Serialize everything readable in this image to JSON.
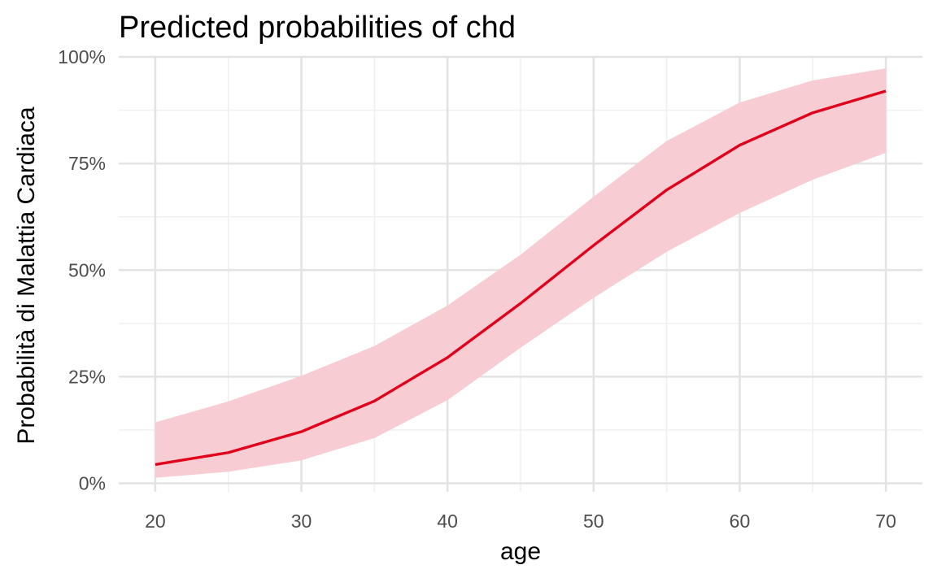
{
  "chart_data": {
    "type": "line",
    "title": "Predicted probabilities of chd",
    "xlabel": "age",
    "ylabel": "Probabilità di Malattia Cardiaca",
    "xlim": [
      17.5,
      72.5
    ],
    "ylim": [
      -0.02,
      1.0
    ],
    "x_ticks": [
      20,
      30,
      40,
      50,
      60,
      70
    ],
    "x_tick_labels": [
      "20",
      "30",
      "40",
      "50",
      "60",
      "70"
    ],
    "x_minor_ticks": [
      25,
      35,
      45,
      55,
      65
    ],
    "y_ticks": [
      0,
      0.25,
      0.5,
      0.75,
      1.0
    ],
    "y_tick_labels": [
      "0%",
      "25%",
      "50%",
      "75%",
      "100%"
    ],
    "y_minor_ticks": [
      0.125,
      0.375,
      0.625,
      0.875
    ],
    "grid": true,
    "legend": "none",
    "line_color": "#e0001b",
    "band_color": "#f7cdd3",
    "series": [
      {
        "x": [
          20,
          25,
          30,
          35,
          40,
          45,
          50,
          55,
          60,
          65,
          70
        ],
        "y": [
          0.044,
          0.072,
          0.121,
          0.193,
          0.295,
          0.422,
          0.558,
          0.688,
          0.793,
          0.869,
          0.92
        ],
        "lower": [
          0.013,
          0.027,
          0.054,
          0.106,
          0.195,
          0.318,
          0.435,
          0.543,
          0.634,
          0.712,
          0.775
        ],
        "upper": [
          0.143,
          0.192,
          0.252,
          0.322,
          0.417,
          0.536,
          0.672,
          0.803,
          0.893,
          0.945,
          0.973
        ]
      }
    ]
  }
}
